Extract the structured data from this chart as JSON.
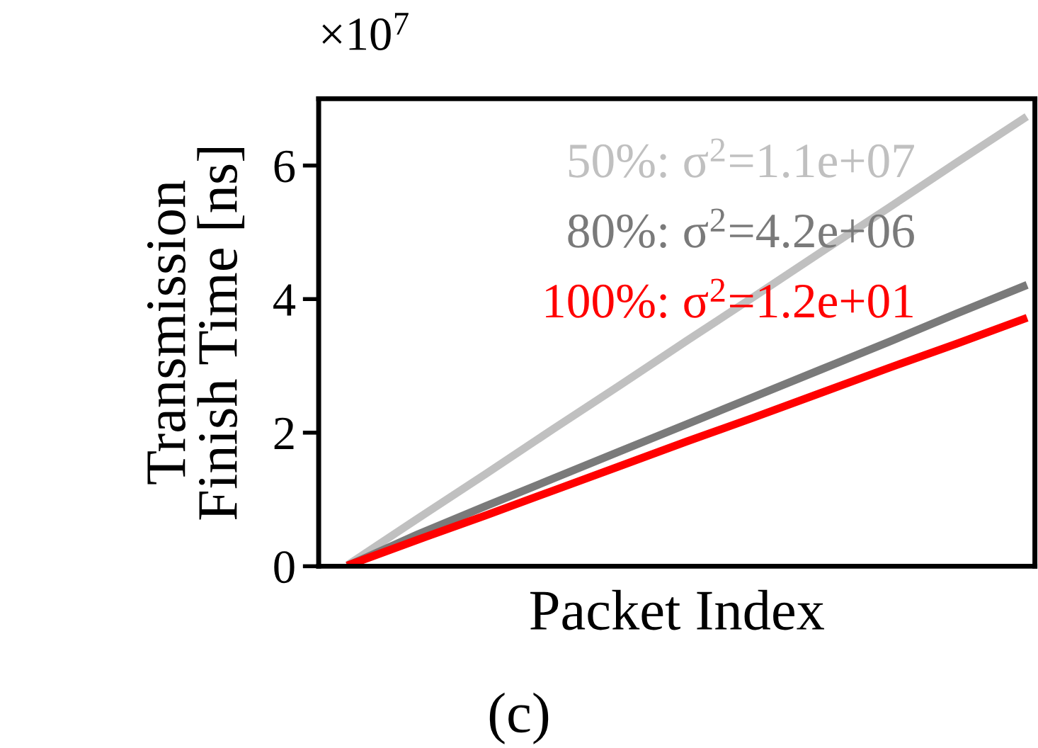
{
  "chart_data": {
    "type": "line",
    "title": "(c)",
    "xlabel": "Packet Index",
    "ylabel": "Transmission\nFinish Time [ns]",
    "annotations": [
      "×10$^{7}$"
    ],
    "categories": [
      null,
      null,
      null,
      null,
      null,
      null,
      null,
      null,
      null,
      null,
      null
    ],
    "ylim": [
      0,
      7.0
    ],
    "yticks": [
      0,
      2,
      4,
      6
    ],
    "grid": false,
    "legend": false,
    "line_style": "solid",
    "marker": "none",
    "tick_labels": "y",
    "series": [
      {
        "name": "50%: σ$^{2}$=1.1e+07",
        "color": "#c0c0c0",
        "values": [
          0.05,
          0.72,
          1.38,
          2.05,
          2.71,
          3.38,
          4.04,
          4.71,
          5.37,
          6.04,
          6.7
        ]
      },
      {
        "name": "80%: σ$^{2}$=4.2e+06",
        "color": "#7a7a7a",
        "values": [
          0.03,
          0.48,
          0.9,
          1.31,
          1.72,
          2.13,
          2.54,
          2.95,
          3.36,
          3.78,
          4.19
        ]
      },
      {
        "name": "100%: σ$^{2}$=1.2e+01",
        "color": "#ff0000",
        "values": [
          0.03,
          0.4,
          0.76,
          1.13,
          1.5,
          1.87,
          2.23,
          2.6,
          2.97,
          3.33,
          3.7
        ]
      }
    ]
  }
}
